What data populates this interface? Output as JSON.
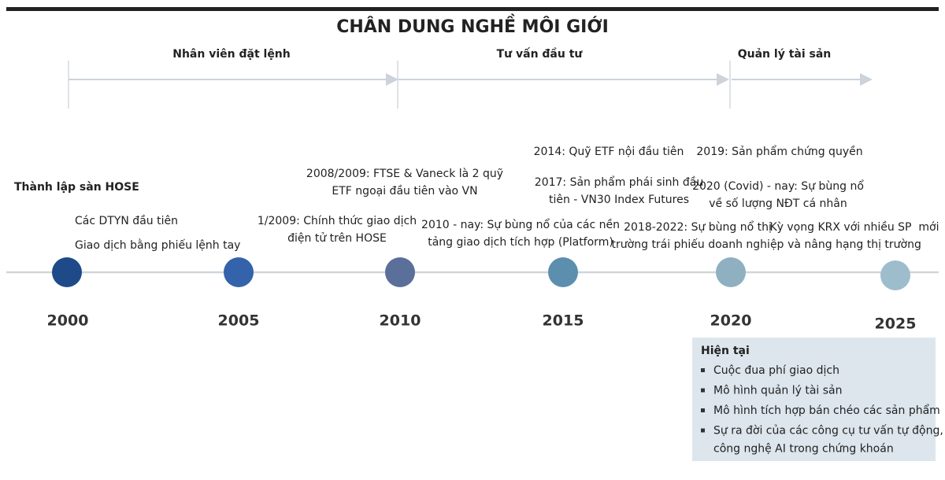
{
  "title": "CHÂN DUNG NGHỀ MÔI GIỚI",
  "phases": [
    "Nhân viên đặt lệnh",
    "Tư vấn đầu tư",
    "Quản lý tài sản"
  ],
  "years": [
    "2000",
    "2005",
    "2010",
    "2015",
    "2020",
    "2025"
  ],
  "events": [
    {
      "lines": [
        "Thành lập sàn HOSE"
      ]
    },
    {
      "lines": [
        "Các DTYN đầu tiên"
      ]
    },
    {
      "lines": [
        "Giao dịch bằng phiếu lệnh tay"
      ]
    },
    {
      "lines": [
        "2008/2009: FTSE & Vaneck là 2 quỹ",
        "ETF ngoại đầu tiên vào VN"
      ]
    },
    {
      "lines": [
        "1/2009: Chính thức giao dịch",
        "điện tử trên HOSE"
      ]
    },
    {
      "lines": [
        "2014: Quỹ ETF nội đầu tiên"
      ]
    },
    {
      "lines": [
        "2017: Sản phẩm phái sinh đầu",
        "tiên - VN30 Index Futures"
      ]
    },
    {
      "lines": [
        "2010 - nay: Sự bùng nổ của các nền",
        "tảng giao dịch tích hợp (Platform)"
      ]
    },
    {
      "lines": [
        "2018-2022: Sự bùng nổ thị",
        "trường trái phiếu doanh nghiệp"
      ]
    },
    {
      "lines": [
        "2019: Sản phẩm chứng quyền"
      ]
    },
    {
      "lines": [
        "2020 (Covid) - nay: Sự bùng nổ",
        "về số lượng NĐT cá nhân"
      ]
    },
    {
      "lines": [
        "Kỳ vọng KRX với nhiều SP  mới",
        "và nâng hạng thị trường"
      ]
    }
  ],
  "current": {
    "heading": "Hiện tại",
    "items": [
      {
        "lines": [
          "Cuộc đua phí giao dịch"
        ]
      },
      {
        "lines": [
          "Mô hình quản lý tài sản"
        ]
      },
      {
        "lines": [
          "Mô hình tích hợp bán chéo các sản phẩm"
        ]
      },
      {
        "lines": [
          "Sự ra đời của các công cụ tư vấn tự động,",
          "công nghệ AI trong chứng khoán"
        ]
      }
    ]
  }
}
